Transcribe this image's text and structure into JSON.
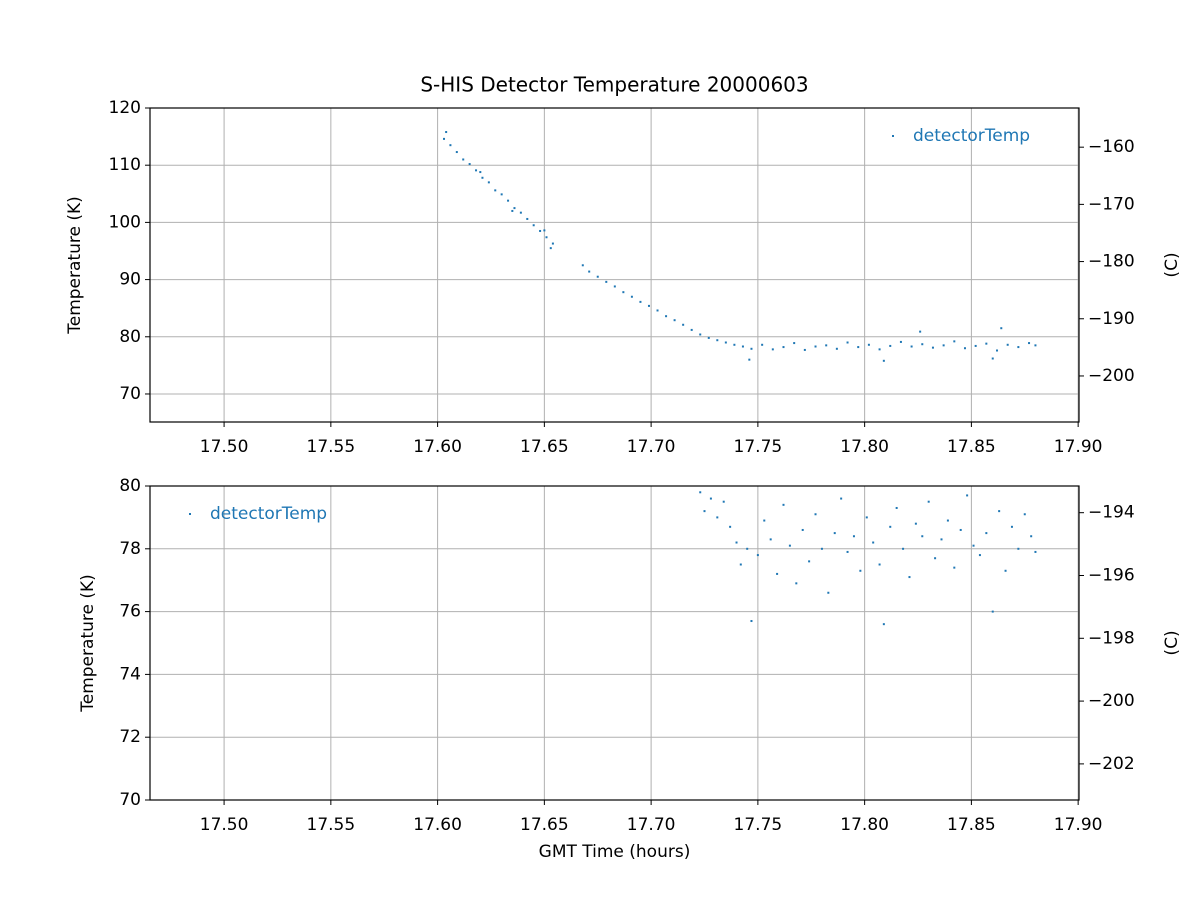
{
  "chart_data": [
    {
      "type": "scatter",
      "title": "S-HIS Detector Temperature 20000603",
      "ylabel": "Temperature (K)",
      "y2label": "(C)",
      "series": [
        {
          "name": "detectorTemp",
          "color": "#1f77b4",
          "x": [
            17.603,
            17.606,
            17.609,
            17.612,
            17.615,
            17.618,
            17.621,
            17.624,
            17.627,
            17.63,
            17.633,
            17.636,
            17.639,
            17.642,
            17.645,
            17.648,
            17.651,
            17.654,
            17.604,
            17.62,
            17.635,
            17.65,
            17.653,
            17.668,
            17.671,
            17.675,
            17.679,
            17.683,
            17.687,
            17.691,
            17.695,
            17.699,
            17.703,
            17.707,
            17.711,
            17.715,
            17.719,
            17.723,
            17.727,
            17.731,
            17.735,
            17.739,
            17.743,
            17.747,
            17.752,
            17.757,
            17.762,
            17.767,
            17.772,
            17.777,
            17.782,
            17.787,
            17.792,
            17.797,
            17.802,
            17.807,
            17.812,
            17.817,
            17.822,
            17.827,
            17.832,
            17.837,
            17.842,
            17.847,
            17.852,
            17.857,
            17.862,
            17.867,
            17.872,
            17.877,
            17.88,
            17.746,
            17.809,
            17.86,
            17.864,
            17.826
          ],
          "values": [
            114.6,
            113.5,
            112.3,
            111.0,
            110.2,
            109.1,
            107.8,
            107.0,
            105.6,
            104.9,
            103.8,
            102.5,
            101.7,
            100.6,
            99.5,
            98.5,
            97.4,
            96.3,
            115.8,
            108.8,
            102.0,
            98.6,
            95.5,
            92.5,
            91.4,
            90.5,
            89.6,
            88.8,
            87.8,
            87.0,
            86.1,
            85.4,
            84.6,
            83.6,
            82.9,
            82.1,
            81.2,
            80.4,
            79.8,
            79.4,
            79.0,
            78.6,
            78.3,
            77.9,
            78.6,
            77.8,
            78.2,
            78.9,
            77.7,
            78.3,
            78.5,
            77.9,
            79.0,
            78.2,
            78.6,
            77.8,
            78.4,
            79.1,
            78.3,
            78.7,
            78.1,
            78.5,
            79.2,
            78.0,
            78.4,
            78.8,
            77.6,
            78.6,
            78.2,
            78.9,
            78.5,
            76.0,
            75.8,
            76.2,
            81.5,
            80.9
          ]
        }
      ],
      "xlim": [
        17.4653,
        17.9004
      ],
      "ylim": [
        65.1,
        120
      ],
      "y2lim": [
        -208.05,
        -153.15
      ],
      "xticks": [
        {
          "value": 17.5,
          "label": "17.50"
        },
        {
          "value": 17.55,
          "label": "17.55"
        },
        {
          "value": 17.6,
          "label": "17.60"
        },
        {
          "value": 17.65,
          "label": "17.65"
        },
        {
          "value": 17.7,
          "label": "17.70"
        },
        {
          "value": 17.75,
          "label": "17.75"
        },
        {
          "value": 17.8,
          "label": "17.80"
        },
        {
          "value": 17.85,
          "label": "17.85"
        },
        {
          "value": 17.9,
          "label": "17.90"
        }
      ],
      "yticks": [
        70,
        80,
        90,
        100,
        110,
        120
      ],
      "y2ticks": [
        {
          "value": -200,
          "label": "−200"
        },
        {
          "value": -190,
          "label": "−190"
        },
        {
          "value": -180,
          "label": "−180"
        },
        {
          "value": -170,
          "label": "−170"
        },
        {
          "value": -160,
          "label": "−160"
        }
      ],
      "grid": true,
      "legend": "upper right"
    },
    {
      "type": "scatter",
      "xlabel": "GMT Time (hours)",
      "ylabel": "Temperature (K)",
      "y2label": "(C)",
      "series": [
        {
          "name": "detectorTemp",
          "color": "#1f77b4",
          "x": [
            17.723,
            17.725,
            17.728,
            17.731,
            17.734,
            17.737,
            17.74,
            17.742,
            17.745,
            17.747,
            17.75,
            17.753,
            17.756,
            17.759,
            17.762,
            17.765,
            17.768,
            17.771,
            17.774,
            17.777,
            17.78,
            17.783,
            17.786,
            17.789,
            17.792,
            17.795,
            17.798,
            17.801,
            17.804,
            17.807,
            17.809,
            17.812,
            17.815,
            17.818,
            17.821,
            17.824,
            17.827,
            17.83,
            17.833,
            17.836,
            17.839,
            17.842,
            17.845,
            17.848,
            17.851,
            17.854,
            17.857,
            17.86,
            17.863,
            17.866,
            17.869,
            17.872,
            17.875,
            17.878,
            17.88
          ],
          "values": [
            79.8,
            79.2,
            79.6,
            79.0,
            79.5,
            78.7,
            78.2,
            77.5,
            78.0,
            75.7,
            77.8,
            78.9,
            78.3,
            77.2,
            79.4,
            78.1,
            76.9,
            78.6,
            77.6,
            79.1,
            78.0,
            76.6,
            78.5,
            79.6,
            77.9,
            78.4,
            77.3,
            79.0,
            78.2,
            77.5,
            75.6,
            78.7,
            79.3,
            78.0,
            77.1,
            78.8,
            78.4,
            79.5,
            77.7,
            78.3,
            78.9,
            77.4,
            78.6,
            79.7,
            78.1,
            77.8,
            78.5,
            76.0,
            79.2,
            77.3,
            78.7,
            78.0,
            79.1,
            78.4,
            77.9
          ]
        }
      ],
      "xlim": [
        17.4653,
        17.9004
      ],
      "ylim": [
        70,
        80
      ],
      "y2lim": [
        -203.15,
        -193.15
      ],
      "xticks": [
        {
          "value": 17.5,
          "label": "17.50"
        },
        {
          "value": 17.55,
          "label": "17.55"
        },
        {
          "value": 17.6,
          "label": "17.60"
        },
        {
          "value": 17.65,
          "label": "17.65"
        },
        {
          "value": 17.7,
          "label": "17.70"
        },
        {
          "value": 17.75,
          "label": "17.75"
        },
        {
          "value": 17.8,
          "label": "17.80"
        },
        {
          "value": 17.85,
          "label": "17.85"
        },
        {
          "value": 17.9,
          "label": "17.90"
        }
      ],
      "yticks": [
        70,
        72,
        74,
        76,
        78,
        80
      ],
      "y2ticks": [
        {
          "value": -202,
          "label": "−202"
        },
        {
          "value": -200,
          "label": "−200"
        },
        {
          "value": -198,
          "label": "−198"
        },
        {
          "value": -196,
          "label": "−196"
        },
        {
          "value": -194,
          "label": "−194"
        }
      ],
      "grid": true,
      "legend": "upper left"
    }
  ]
}
